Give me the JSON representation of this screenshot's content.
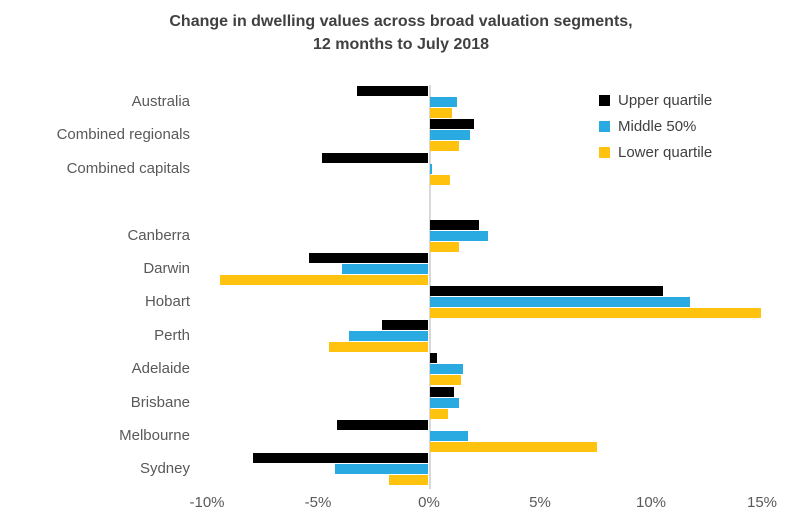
{
  "title": {
    "line1": "Change in dwelling values across broad valuation segments,",
    "line2": "12 months to July 2018"
  },
  "colors": {
    "upper_quartile": "#000000",
    "middle_50": "#29abe2",
    "lower_quartile": "#ffc20e",
    "axis_line": "#d9d9d9",
    "category_text": "#595959",
    "title_text": "#404040"
  },
  "chart_data": {
    "type": "bar",
    "orientation": "horizontal",
    "title": "Change in dwelling values across broad valuation segments, 12 months to July 2018",
    "xlabel": "",
    "ylabel": "",
    "unit": "%",
    "grid": false,
    "legend_position": "top-right",
    "xlim": [
      -10.5,
      15.3
    ],
    "x_ticks": [
      "-10%",
      "-5%",
      "0%",
      "5%",
      "10%",
      "15%"
    ],
    "x_tick_values": [
      -10,
      -5,
      0,
      5,
      10,
      15
    ],
    "categories": [
      "Australia",
      "Combined regionals",
      "Combined capitals",
      "",
      "Canberra",
      "Darwin",
      "Hobart",
      "Perth",
      "Adelaide",
      "Brisbane",
      "Melbourne",
      "Sydney"
    ],
    "series": [
      {
        "name": "Upper quartile",
        "color": "#000000",
        "values": [
          -3.2,
          2.0,
          -4.8,
          null,
          2.2,
          -5.4,
          10.5,
          -2.1,
          0.3,
          1.1,
          -4.1,
          -7.9
        ]
      },
      {
        "name": "Middle 50%",
        "color": "#29abe2",
        "values": [
          1.2,
          1.8,
          0.1,
          null,
          2.6,
          -3.9,
          11.7,
          -3.6,
          1.5,
          1.3,
          1.7,
          -4.2
        ]
      },
      {
        "name": "Lower quartile",
        "color": "#ffc20e",
        "values": [
          1.0,
          1.3,
          0.9,
          null,
          1.3,
          -9.4,
          14.9,
          -4.5,
          1.4,
          0.8,
          7.5,
          -1.8
        ]
      }
    ]
  }
}
